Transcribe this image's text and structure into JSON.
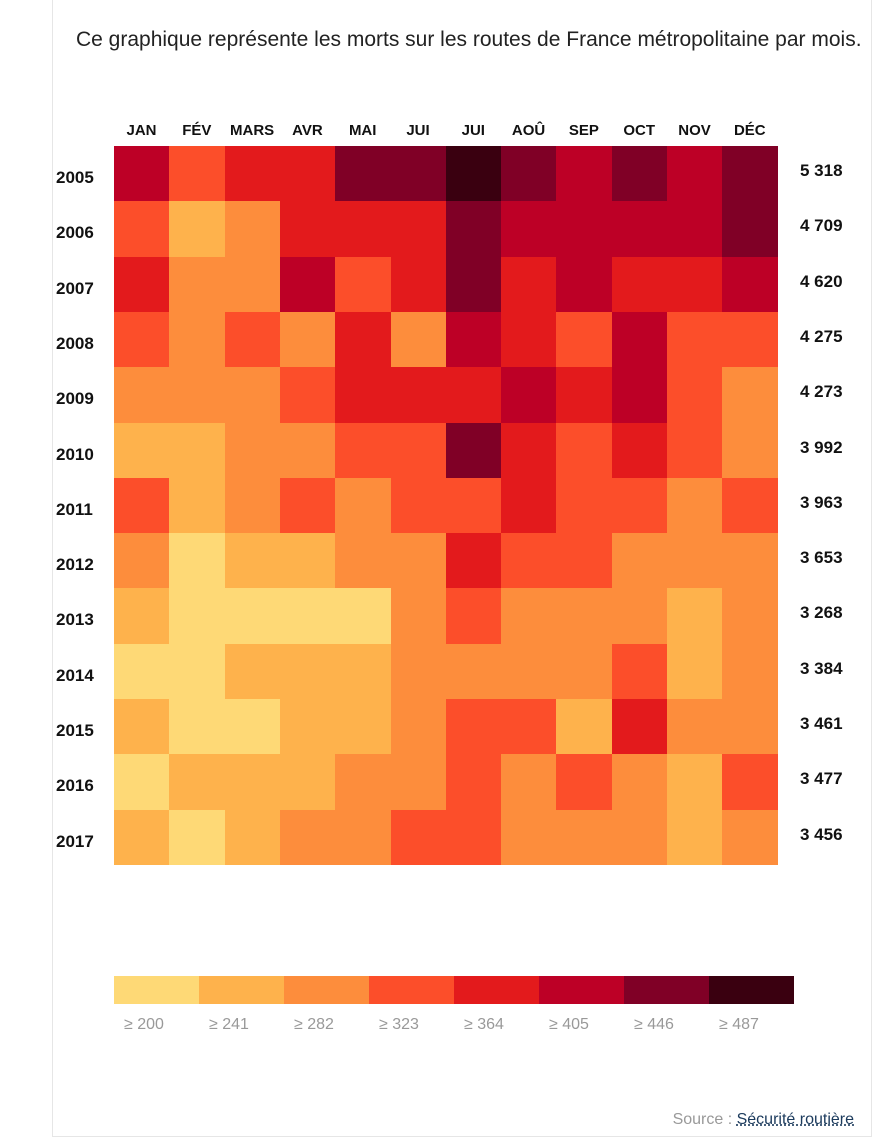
{
  "description": "Ce graphique représente les morts sur les routes de France métropolitaine par mois.",
  "chart_data": {
    "type": "heatmap",
    "title": "Ce graphique représente les morts sur les routes de France métropolitaine par mois.",
    "months": [
      "JAN",
      "FÉV",
      "MARS",
      "AVR",
      "MAI",
      "JUI",
      "JUI",
      "AOÛ",
      "SEP",
      "OCT",
      "NOV",
      "DÉC"
    ],
    "years": [
      "2005",
      "2006",
      "2007",
      "2008",
      "2009",
      "2010",
      "2011",
      "2012",
      "2013",
      "2014",
      "2015",
      "2016",
      "2017"
    ],
    "totals": [
      "5 318",
      "4 709",
      "4 620",
      "4 275",
      "4 273",
      "3 992",
      "3 963",
      "3 653",
      "3 268",
      "3 384",
      "3 461",
      "3 477",
      "3 456"
    ],
    "bins": [
      [
        5,
        3,
        4,
        4,
        6,
        6,
        7,
        6,
        5,
        6,
        5,
        6
      ],
      [
        3,
        1,
        2,
        4,
        4,
        4,
        6,
        5,
        5,
        5,
        5,
        6
      ],
      [
        4,
        2,
        2,
        5,
        3,
        4,
        6,
        4,
        5,
        4,
        4,
        5
      ],
      [
        3,
        2,
        3,
        2,
        4,
        2,
        5,
        4,
        3,
        5,
        3,
        3
      ],
      [
        2,
        2,
        2,
        3,
        4,
        4,
        4,
        5,
        4,
        5,
        3,
        2
      ],
      [
        1,
        1,
        2,
        2,
        3,
        3,
        6,
        4,
        3,
        4,
        3,
        2
      ],
      [
        3,
        1,
        2,
        3,
        2,
        3,
        3,
        4,
        3,
        3,
        2,
        3
      ],
      [
        2,
        0,
        1,
        1,
        2,
        2,
        4,
        3,
        3,
        2,
        2,
        2
      ],
      [
        1,
        0,
        0,
        0,
        0,
        2,
        3,
        2,
        2,
        2,
        1,
        2
      ],
      [
        0,
        0,
        1,
        1,
        1,
        2,
        2,
        2,
        2,
        3,
        1,
        2
      ],
      [
        1,
        0,
        0,
        1,
        1,
        2,
        3,
        3,
        1,
        4,
        2,
        2
      ],
      [
        0,
        1,
        1,
        1,
        2,
        2,
        3,
        2,
        3,
        2,
        1,
        3
      ],
      [
        1,
        0,
        1,
        2,
        2,
        3,
        3,
        2,
        2,
        2,
        1,
        2
      ]
    ],
    "legend": {
      "colors": [
        "#fed976",
        "#feb24c",
        "#fd8d3c",
        "#fc4e2a",
        "#e31a1c",
        "#bd0026",
        "#800026",
        "#3a0010"
      ],
      "labels": [
        "≥ 200",
        "≥ 241",
        "≥ 282",
        "≥ 323",
        "≥ 364",
        "≥ 405",
        "≥ 446",
        "≥ 487"
      ]
    }
  },
  "source": {
    "label": "Source : ",
    "link": "Sécurité routière"
  }
}
